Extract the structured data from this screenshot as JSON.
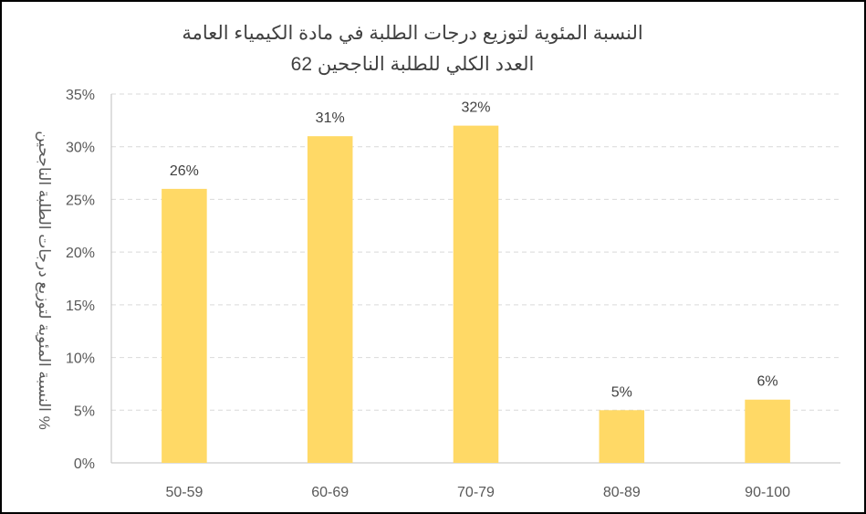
{
  "chart_data": {
    "type": "bar",
    "title": "النسبة المئوية لتوزيع درجات الطلبة في مادة الكيمياء العامة",
    "subtitle": "العدد الكلي للطلبة الناجحين 62",
    "ylabel": "% النسبة المئوية لتوزيع درجات الطلبة الناجحين",
    "xlabel": "",
    "categories": [
      "50-59",
      "60-69",
      "70-79",
      "80-89",
      "90-100"
    ],
    "values": [
      26,
      31,
      32,
      5,
      6
    ],
    "data_labels": [
      "26%",
      "31%",
      "32%",
      "5%",
      "6%"
    ],
    "ylim": [
      0,
      35
    ],
    "yticks": [
      0,
      5,
      10,
      15,
      20,
      25,
      30,
      35
    ],
    "ytick_labels": [
      "0%",
      "5%",
      "10%",
      "15%",
      "20%",
      "25%",
      "30%",
      "35%"
    ],
    "grid": true,
    "grid_style": "dashed",
    "legend": "none",
    "bar_color": "#FFD966"
  }
}
